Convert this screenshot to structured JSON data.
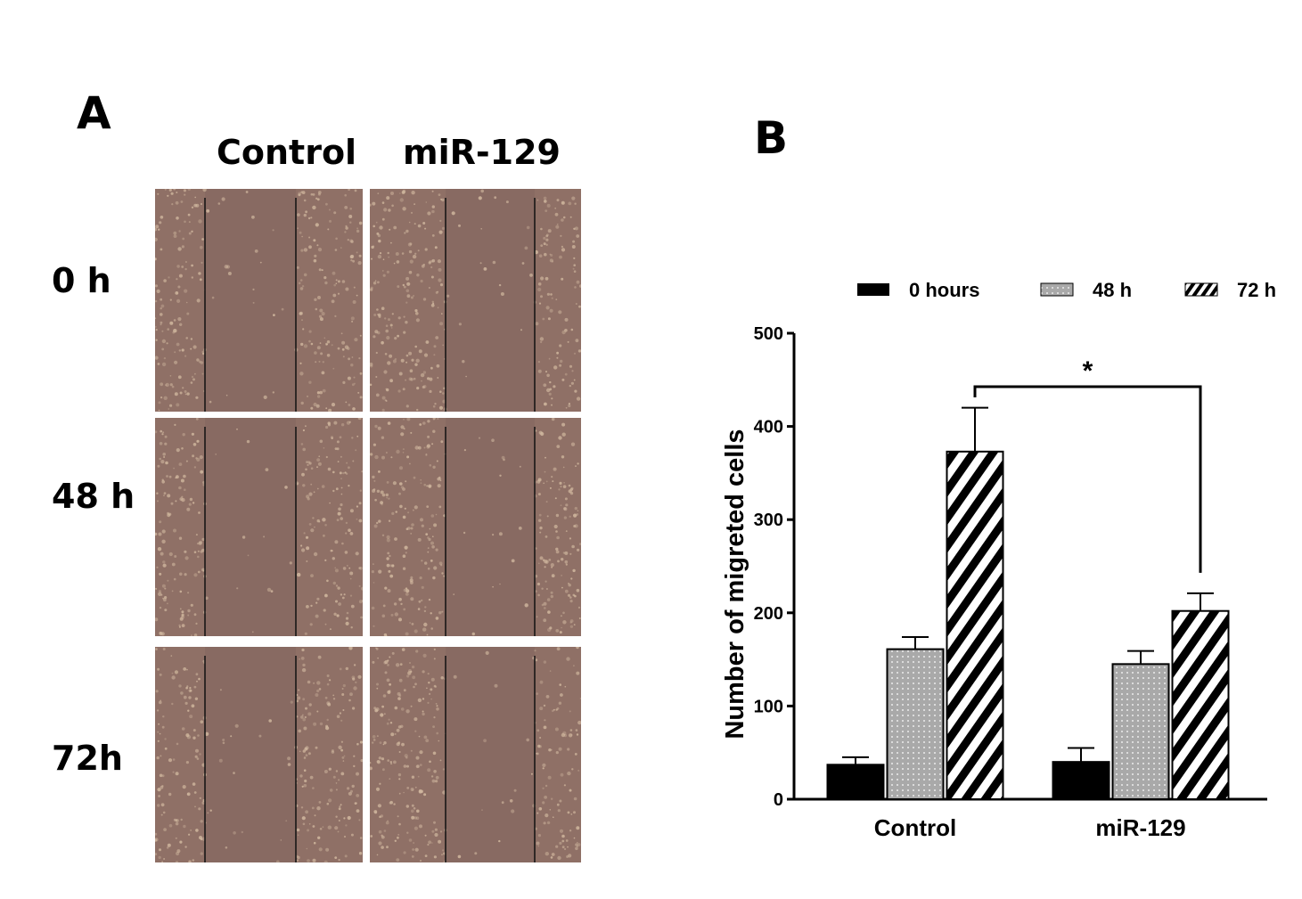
{
  "panel_a": {
    "label": "A",
    "columns": [
      "Control",
      "miR-129"
    ],
    "rows": [
      "0 h",
      "48 h",
      "72h"
    ]
  },
  "panel_b": {
    "label": "B"
  },
  "chart_data": {
    "type": "bar",
    "categories": [
      "Control",
      "miR-129"
    ],
    "series": [
      {
        "name": "0 hours",
        "values": [
          37,
          40
        ],
        "errors": [
          8,
          15
        ],
        "pattern": "solid"
      },
      {
        "name": "48 h",
        "values": [
          161,
          145
        ],
        "errors": [
          13,
          14
        ],
        "pattern": "dotted"
      },
      {
        "name": "72 h",
        "values": [
          373,
          202
        ],
        "errors": [
          47,
          19
        ],
        "pattern": "striped"
      }
    ],
    "ylabel": "Number of migreted cells",
    "xlabel": "",
    "ylim": [
      0,
      500
    ],
    "yticks": [
      0,
      100,
      200,
      300,
      400,
      500
    ],
    "legend_position": "top",
    "significance": {
      "label": "*",
      "from": "Control 72 h",
      "to": "miR-129 72 h"
    },
    "grid": false
  },
  "colors": {
    "solid": "#000000",
    "dotted_fill": "#a9a9a9",
    "stripe": "#000000",
    "micro_bg": "#8f7066",
    "micro_gap": "#886a62",
    "micro_cell": "#d2b9a0"
  }
}
